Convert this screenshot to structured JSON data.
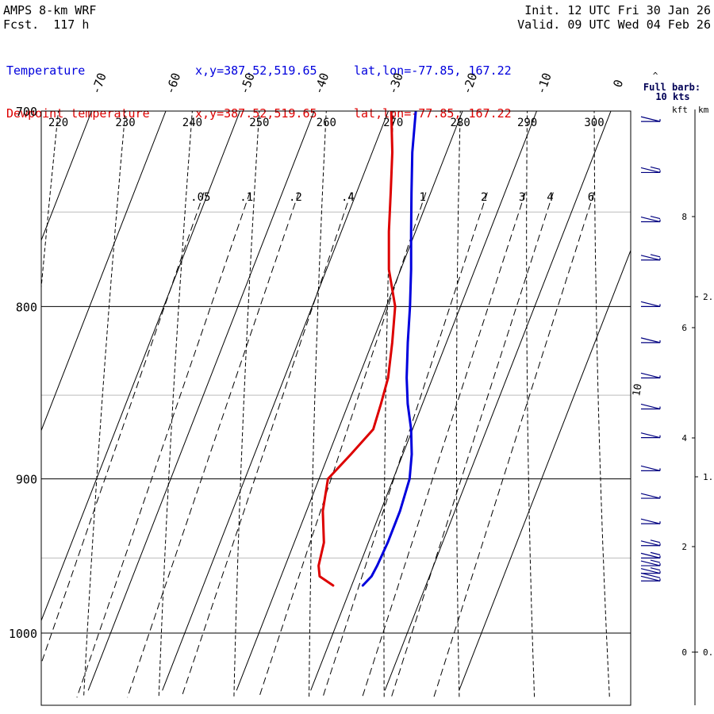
{
  "header": {
    "model": "AMPS 8-km WRF",
    "forecast": "Fcst.  117 h",
    "init": "Init. 12 UTC Fri 30 Jan 26",
    "valid": "Valid. 09 UTC Wed 04 Feb 26"
  },
  "legend": [
    {
      "name": "Temperature",
      "xy": "x,y=387.52,519.65",
      "latlon": "lat,lon=-77.85, 167.22",
      "color": "#0000dd"
    },
    {
      "name": "Dewpoint temperature",
      "xy": "x,y=387.52,519.65",
      "latlon": "lat,lon=-77.85, 167.22",
      "color": "#dd0000"
    }
  ],
  "wind_panel": {
    "title": "Full barb:",
    "subtitle": "10 kts",
    "kft_label": "kft",
    "km_label": "km",
    "barb_value_label": "10"
  },
  "chart_data": {
    "type": "line",
    "subtype": "skew-T log-P sounding",
    "pressure_axis": {
      "ylim": [
        1040,
        700
      ],
      "ticks": [
        700,
        800,
        900,
        1000
      ],
      "labels": [
        "700",
        "800",
        "900",
        "1000"
      ],
      "scale": "log"
    },
    "isotherms": {
      "labels": [
        "-70",
        "-60",
        "-50",
        "-40",
        "-30",
        "-20",
        "-10",
        "0"
      ],
      "values": [
        -70,
        -60,
        -50,
        -40,
        -30,
        -20,
        -10,
        0
      ]
    },
    "dry_adiabats": {
      "labels": [
        "220",
        "230",
        "240",
        "250",
        "260",
        "270",
        "280",
        "290",
        "300"
      ],
      "values": [
        220,
        230,
        240,
        250,
        260,
        270,
        280,
        290,
        300
      ]
    },
    "mixing_ratio": {
      "labels": [
        ".05",
        ".1",
        ".2",
        ".4",
        "1",
        "2",
        "3",
        "4",
        "6"
      ],
      "values": [
        0.05,
        0.1,
        0.2,
        0.4,
        1,
        2,
        3,
        4,
        6
      ]
    },
    "height_axis_kft": {
      "labels": [
        "0",
        "2",
        "4",
        "6",
        "8"
      ],
      "values": [
        0,
        2,
        4,
        6,
        8
      ]
    },
    "height_axis_km": {
      "labels": [
        "0.",
        "1.",
        "2."
      ],
      "values": [
        0,
        1,
        2
      ]
    },
    "grid": true,
    "series": [
      {
        "name": "Temperature",
        "color": "#0000dd",
        "pressure": [
          968,
          962,
          955,
          940,
          920,
          900,
          885,
          870,
          855,
          840,
          820,
          800,
          780,
          760,
          740,
          720,
          700
        ],
        "temperature": [
          -8.5,
          -7.8,
          -7.6,
          -7.4,
          -7.4,
          -7.8,
          -8.8,
          -10.2,
          -12.0,
          -13.5,
          -15.2,
          -16.8,
          -18.6,
          -20.6,
          -22.6,
          -24.6,
          -26.3
        ]
      },
      {
        "name": "Dewpoint temperature",
        "color": "#dd0000",
        "pressure": [
          968,
          962,
          955,
          940,
          920,
          900,
          885,
          870,
          855,
          840,
          820,
          800,
          780,
          760,
          740,
          720,
          700
        ],
        "temperature": [
          -12.5,
          -14.8,
          -15.5,
          -16.0,
          -17.8,
          -18.8,
          -17.0,
          -15.3,
          -15.6,
          -16.0,
          -17.3,
          -18.8,
          -21.6,
          -23.6,
          -25.4,
          -27.3,
          -29.6
        ]
      }
    ],
    "wind_barbs": {
      "pressure": [
        705,
        730,
        755,
        775,
        800,
        820,
        840,
        858,
        875,
        895,
        912,
        928,
        942,
        950,
        955,
        960,
        965
      ],
      "speed_kt": [
        10,
        15,
        15,
        15,
        10,
        10,
        10,
        10,
        10,
        10,
        10,
        10,
        15,
        15,
        15,
        15,
        20
      ]
    }
  }
}
